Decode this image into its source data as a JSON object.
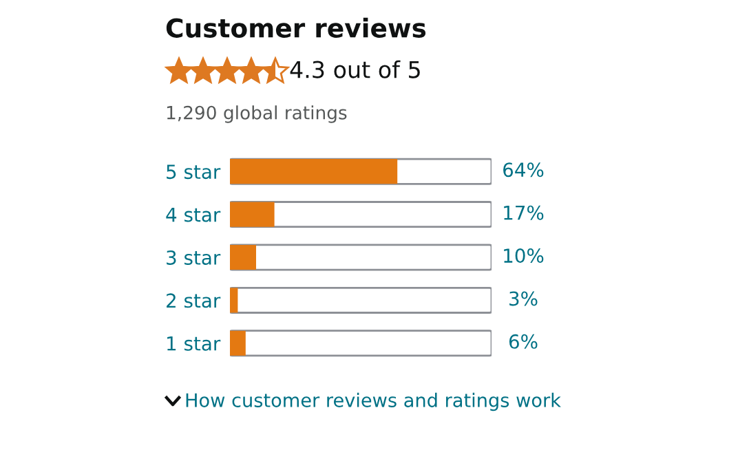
{
  "chart_data": {
    "type": "bar",
    "orientation": "horizontal",
    "title": "Customer reviews",
    "subtitle": "4.3 out of 5",
    "annotations": [
      "1,290 global ratings",
      "How customer reviews and ratings work"
    ],
    "categories": [
      "5 star",
      "4 star",
      "3 star",
      "2 star",
      "1 star"
    ],
    "values": [
      64,
      17,
      10,
      3,
      6
    ],
    "color": "#e47911",
    "value_labels": [
      "64%",
      "17%",
      "10%",
      "3%",
      "6%"
    ],
    "xlim": [
      0,
      100
    ],
    "tick_labels": "y",
    "grid": false,
    "legend": false
  }
}
